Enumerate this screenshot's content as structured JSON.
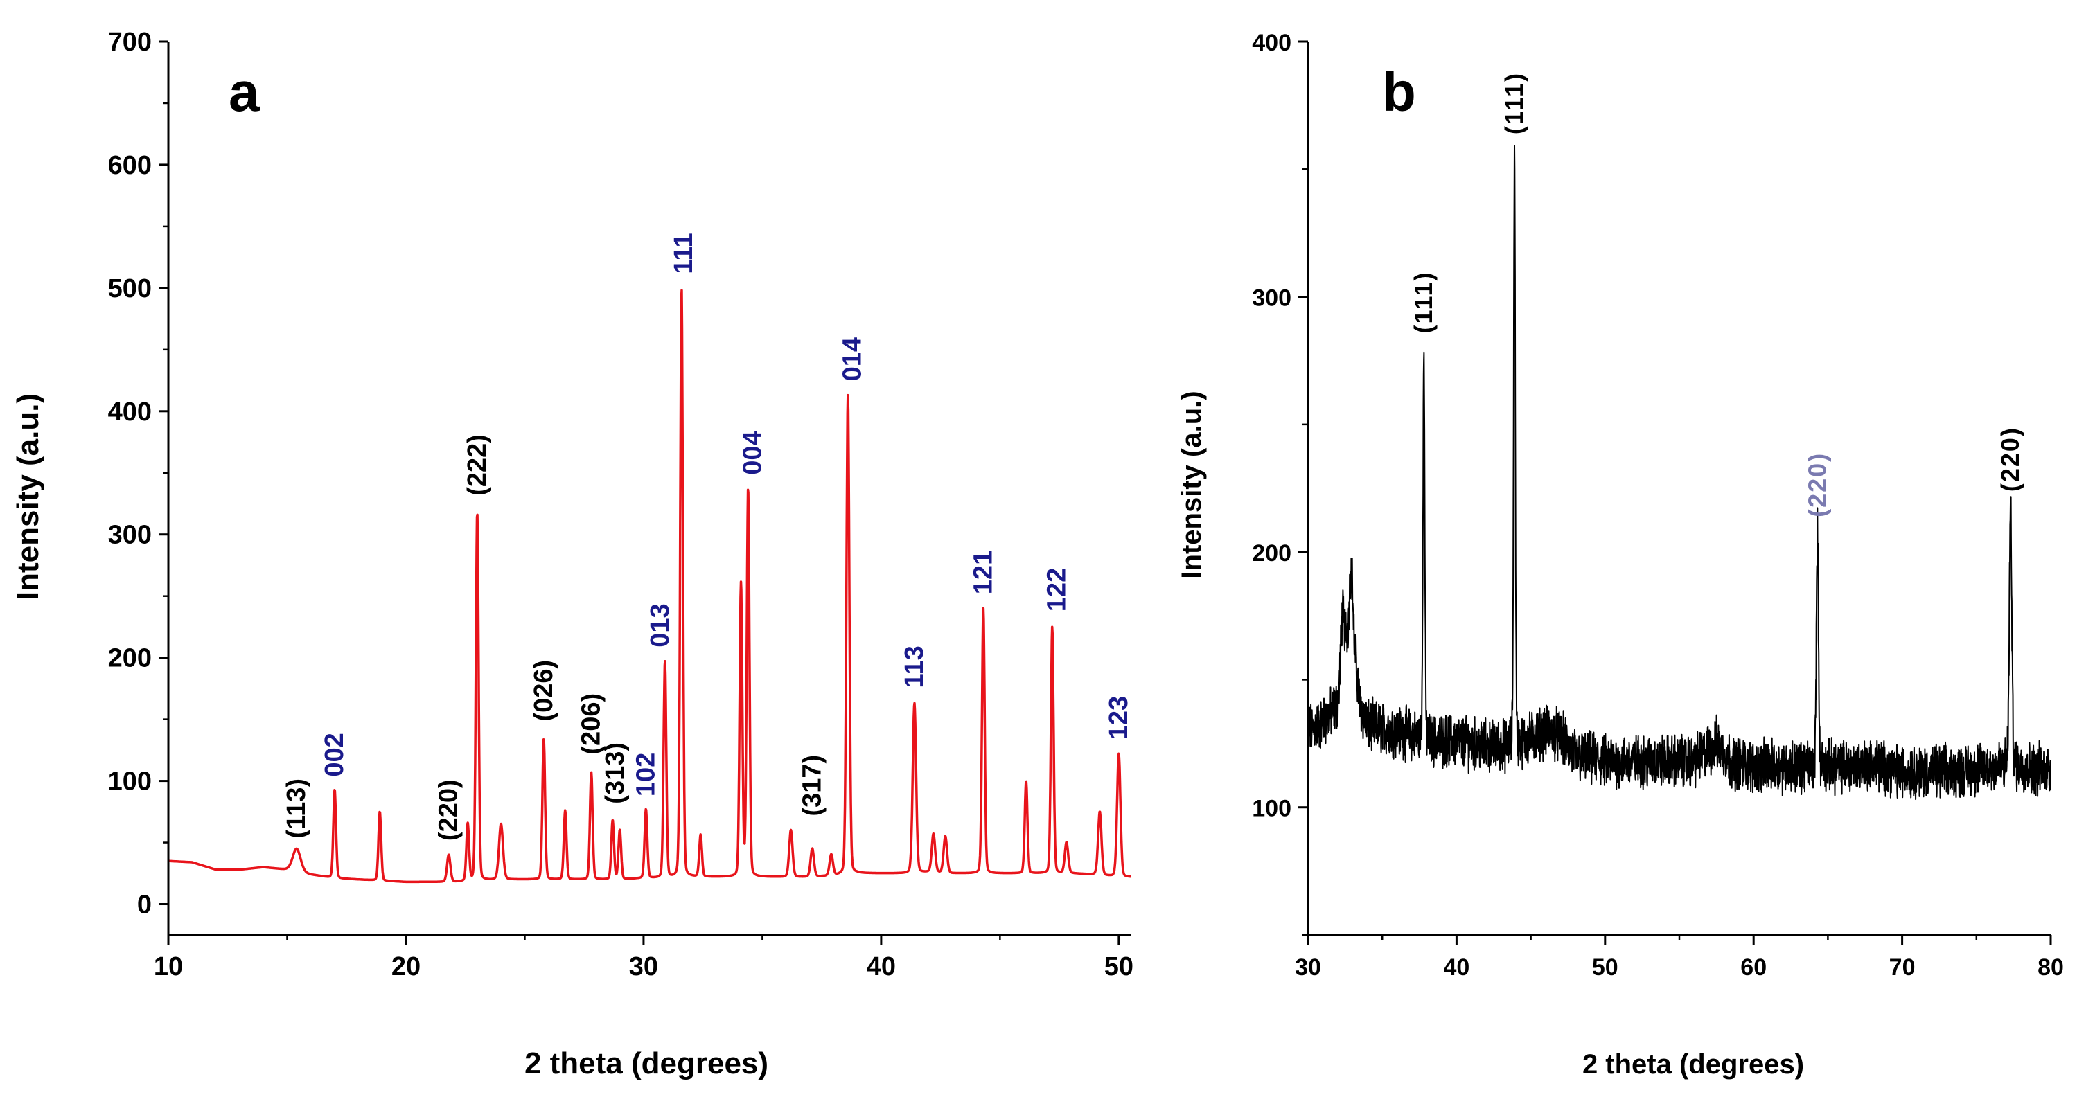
{
  "colors": {
    "hkl_blue": "#1a1a8c",
    "hkl_black": "#000000",
    "hkl_grey": "#7a7ab0",
    "curve_a": "#e8141b",
    "curve_b": "#000000"
  },
  "chart_data": [
    {
      "panel_label": "a",
      "type": "line",
      "xlabel": "2 theta (degrees)",
      "ylabel": "Intensity (a.u.)",
      "xlim": [
        10,
        50.5
      ],
      "ylim": [
        -25,
        700
      ],
      "xticks": [
        10,
        20,
        30,
        40,
        50
      ],
      "yticks": [
        0,
        100,
        200,
        300,
        400,
        500,
        600,
        700
      ],
      "baseline": [
        [
          10,
          35
        ],
        [
          11,
          34
        ],
        [
          12,
          28
        ],
        [
          13,
          28
        ],
        [
          14,
          30
        ],
        [
          15,
          28
        ],
        [
          16,
          24
        ],
        [
          17,
          21
        ],
        [
          18,
          20
        ],
        [
          19,
          19
        ],
        [
          20,
          18
        ],
        [
          21,
          18
        ],
        [
          22,
          18
        ],
        [
          23,
          19
        ],
        [
          24,
          20
        ],
        [
          25,
          20
        ],
        [
          26,
          20
        ],
        [
          27,
          20
        ],
        [
          28,
          20
        ],
        [
          29,
          20
        ],
        [
          30,
          21
        ],
        [
          31,
          21
        ],
        [
          32,
          22
        ],
        [
          33,
          22
        ],
        [
          34,
          22
        ],
        [
          35,
          22
        ],
        [
          36,
          22
        ],
        [
          37,
          22
        ],
        [
          38,
          23
        ],
        [
          39,
          25
        ],
        [
          40,
          25
        ],
        [
          41,
          25
        ],
        [
          42,
          26
        ],
        [
          43,
          25
        ],
        [
          44,
          25
        ],
        [
          45,
          25
        ],
        [
          46,
          25
        ],
        [
          47,
          25
        ],
        [
          48,
          25
        ],
        [
          49,
          24
        ],
        [
          50,
          22
        ],
        [
          50.5,
          22
        ]
      ],
      "peaks": [
        {
          "x": 15.4,
          "y": 45,
          "w": 0.35
        },
        {
          "x": 17.0,
          "y": 93,
          "w": 0.12
        },
        {
          "x": 18.9,
          "y": 75,
          "w": 0.12
        },
        {
          "x": 21.8,
          "y": 40,
          "w": 0.15
        },
        {
          "x": 22.6,
          "y": 65,
          "w": 0.12
        },
        {
          "x": 23.0,
          "y": 318,
          "w": 0.12
        },
        {
          "x": 24.0,
          "y": 65,
          "w": 0.18
        },
        {
          "x": 25.8,
          "y": 134,
          "w": 0.12
        },
        {
          "x": 26.7,
          "y": 76,
          "w": 0.12
        },
        {
          "x": 27.8,
          "y": 107,
          "w": 0.12
        },
        {
          "x": 28.7,
          "y": 68,
          "w": 0.12
        },
        {
          "x": 29.0,
          "y": 60,
          "w": 0.12
        },
        {
          "x": 30.1,
          "y": 77,
          "w": 0.12
        },
        {
          "x": 30.9,
          "y": 197,
          "w": 0.12
        },
        {
          "x": 31.6,
          "y": 500,
          "w": 0.12
        },
        {
          "x": 32.4,
          "y": 56,
          "w": 0.12
        },
        {
          "x": 34.1,
          "y": 260,
          "w": 0.12
        },
        {
          "x": 34.4,
          "y": 337,
          "w": 0.12
        },
        {
          "x": 36.2,
          "y": 60,
          "w": 0.15
        },
        {
          "x": 37.1,
          "y": 45,
          "w": 0.15
        },
        {
          "x": 37.9,
          "y": 40,
          "w": 0.15
        },
        {
          "x": 38.6,
          "y": 413,
          "w": 0.13
        },
        {
          "x": 41.4,
          "y": 163,
          "w": 0.15
        },
        {
          "x": 42.2,
          "y": 57,
          "w": 0.15
        },
        {
          "x": 42.7,
          "y": 55,
          "w": 0.15
        },
        {
          "x": 44.3,
          "y": 240,
          "w": 0.12
        },
        {
          "x": 46.1,
          "y": 100,
          "w": 0.12
        },
        {
          "x": 47.2,
          "y": 225,
          "w": 0.12
        },
        {
          "x": 47.8,
          "y": 50,
          "w": 0.15
        },
        {
          "x": 49.2,
          "y": 75,
          "w": 0.15
        },
        {
          "x": 50.0,
          "y": 122,
          "w": 0.15
        }
      ],
      "annotations": [
        {
          "text": "(113)",
          "x": 15.4,
          "y": 50,
          "color": "black"
        },
        {
          "text": "002",
          "x": 17.0,
          "y": 100,
          "color": "blue"
        },
        {
          "text": "(220)",
          "x": 21.8,
          "y": 48,
          "color": "black"
        },
        {
          "text": "(222)",
          "x": 23.0,
          "y": 328,
          "color": "black"
        },
        {
          "text": "(026)",
          "x": 25.8,
          "y": 145,
          "color": "black"
        },
        {
          "text": "(206)",
          "x": 27.8,
          "y": 118,
          "color": "black"
        },
        {
          "text": "(313)",
          "x": 28.8,
          "y": 78,
          "color": "black"
        },
        {
          "text": "102",
          "x": 30.1,
          "y": 84,
          "color": "blue"
        },
        {
          "text": "013",
          "x": 30.7,
          "y": 205,
          "color": "blue"
        },
        {
          "text": "111",
          "x": 31.7,
          "y": 508,
          "color": "blue"
        },
        {
          "text": "004",
          "x": 34.6,
          "y": 345,
          "color": "blue"
        },
        {
          "text": "(317)",
          "x": 37.1,
          "y": 68,
          "color": "black"
        },
        {
          "text": "014",
          "x": 38.8,
          "y": 421,
          "color": "blue"
        },
        {
          "text": "113",
          "x": 41.4,
          "y": 172,
          "color": "blue"
        },
        {
          "text": "121",
          "x": 44.3,
          "y": 248,
          "color": "blue"
        },
        {
          "text": "122",
          "x": 47.4,
          "y": 234,
          "color": "blue"
        },
        {
          "text": "123",
          "x": 50.0,
          "y": 130,
          "color": "blue"
        }
      ]
    },
    {
      "panel_label": "b",
      "type": "line",
      "xlabel": "2 theta (degrees)",
      "ylabel": "Intensity (a.u.)",
      "xlim": [
        30,
        80
      ],
      "ylim": [
        50,
        400
      ],
      "xticks": [
        30,
        40,
        50,
        60,
        70,
        80
      ],
      "yticks": [
        100,
        200,
        300,
        400
      ],
      "baseline": [
        [
          30,
          130
        ],
        [
          31,
          133
        ],
        [
          32,
          140
        ],
        [
          32.5,
          168
        ],
        [
          33,
          170
        ],
        [
          33.5,
          140
        ],
        [
          34,
          132
        ],
        [
          36,
          130
        ],
        [
          37,
          128
        ],
        [
          38,
          126
        ],
        [
          40,
          126
        ],
        [
          42,
          124
        ],
        [
          44,
          124
        ],
        [
          46,
          130
        ],
        [
          47,
          128
        ],
        [
          48,
          120
        ],
        [
          50,
          118
        ],
        [
          54,
          118
        ],
        [
          56,
          118
        ],
        [
          57.5,
          125
        ],
        [
          58.5,
          118
        ],
        [
          60,
          116
        ],
        [
          62,
          116
        ],
        [
          64,
          116
        ],
        [
          66,
          116
        ],
        [
          68,
          117
        ],
        [
          70,
          114
        ],
        [
          72,
          114
        ],
        [
          74,
          114
        ],
        [
          76,
          116
        ],
        [
          78,
          116
        ],
        [
          79,
          115
        ],
        [
          80,
          115
        ]
      ],
      "noise_amplitude": 8,
      "peaks": [
        {
          "x": 32.3,
          "y": 18,
          "w": 0.2
        },
        {
          "x": 32.9,
          "y": 25,
          "w": 0.2
        },
        {
          "x": 37.8,
          "y": 150,
          "w": 0.13
        },
        {
          "x": 43.9,
          "y": 232,
          "w": 0.12
        },
        {
          "x": 64.3,
          "y": 91,
          "w": 0.15
        },
        {
          "x": 77.3,
          "y": 100,
          "w": 0.18
        }
      ],
      "annotations": [
        {
          "text": "(111)",
          "x": 37.8,
          "y": 284,
          "color": "black"
        },
        {
          "text": "(111)",
          "x": 43.9,
          "y": 362,
          "color": "black"
        },
        {
          "text": "(220)",
          "x": 64.3,
          "y": 212,
          "color": "grey"
        },
        {
          "text": "(220)",
          "x": 77.3,
          "y": 222,
          "color": "black"
        }
      ]
    }
  ]
}
